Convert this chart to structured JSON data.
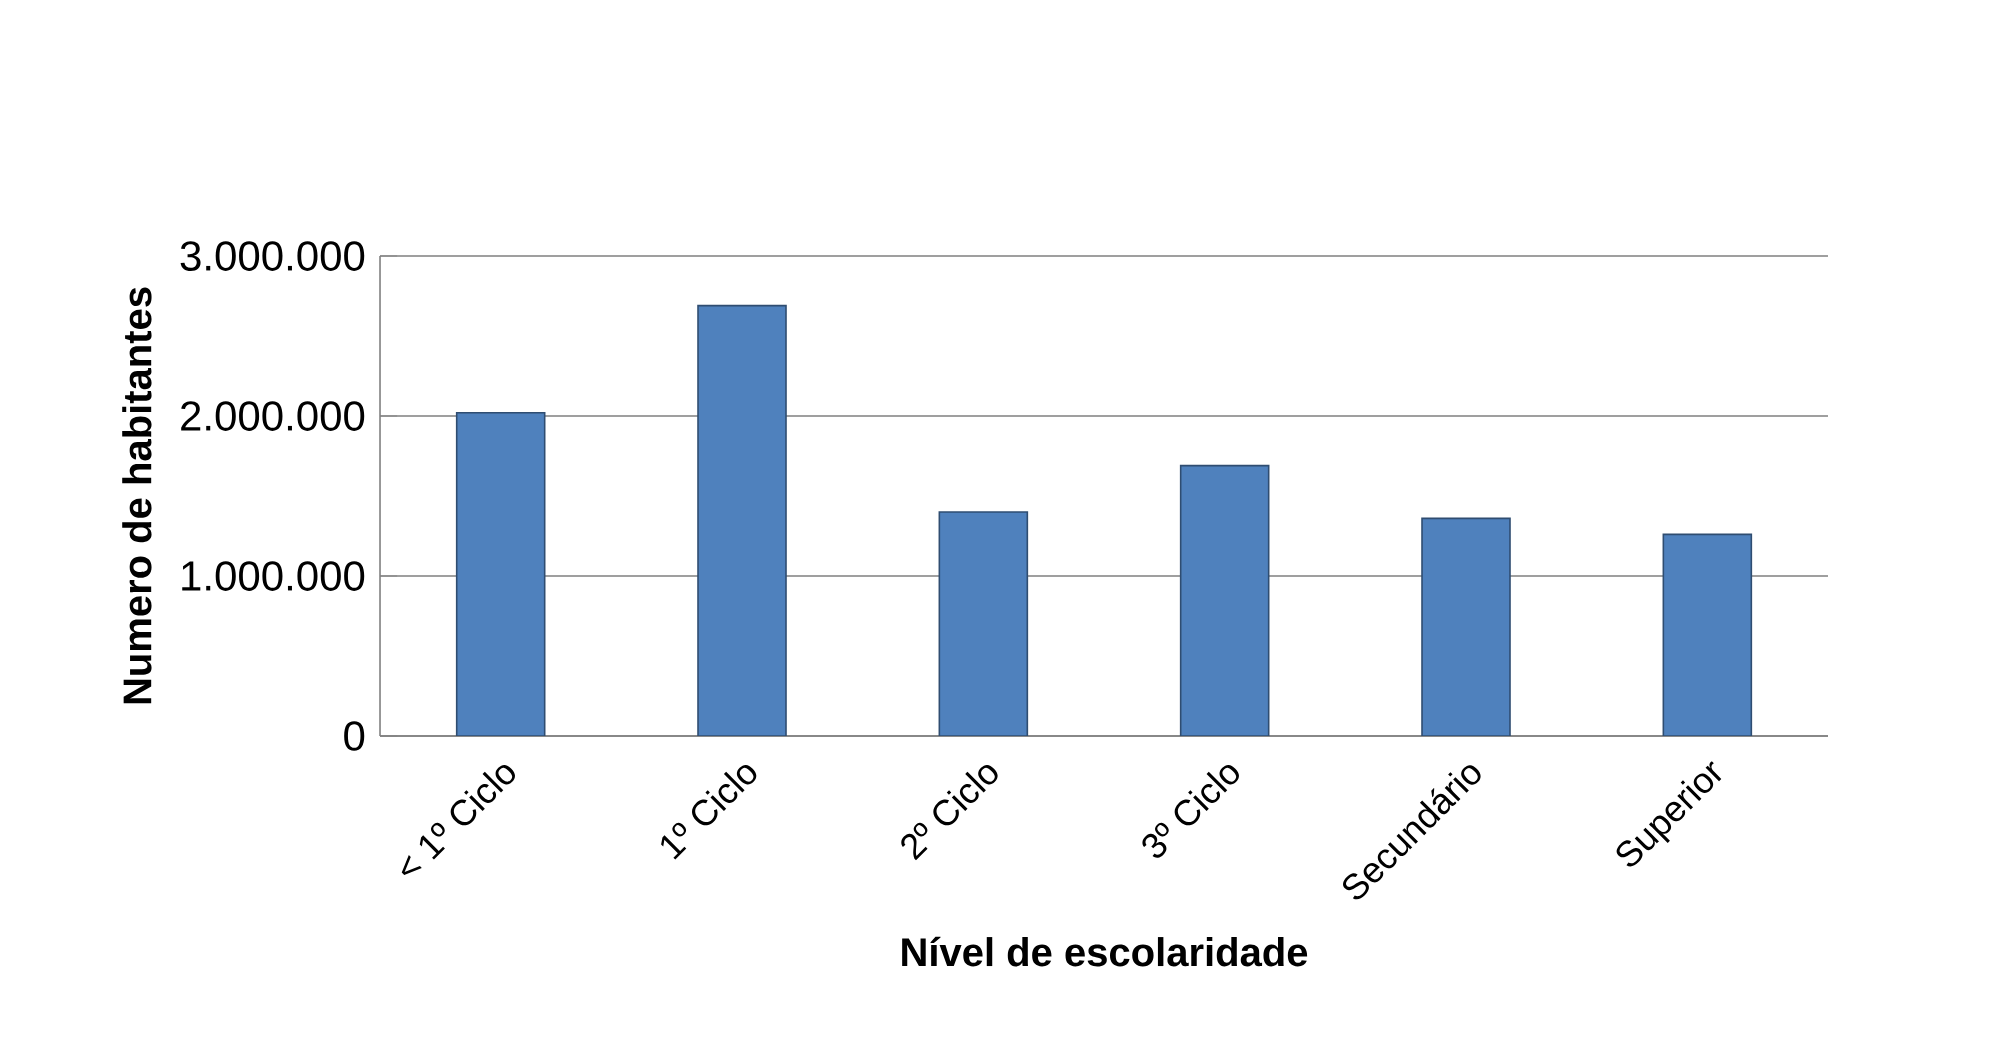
{
  "chart_data": {
    "type": "bar",
    "xlabel": "Nível de escolaridade",
    "ylabel": "Numero de habitantes",
    "categories": [
      "< 1º Ciclo",
      "1º Ciclo",
      "2º Ciclo",
      "3º Ciclo",
      "Secundário",
      "Superior"
    ],
    "values": [
      2020000,
      2690000,
      1400000,
      1690000,
      1360000,
      1260000
    ],
    "color": "#4f81bd",
    "ylim": [
      0,
      3000000
    ],
    "yticks": [
      {
        "value": 0,
        "label": "0"
      },
      {
        "value": 1000000,
        "label": "1.000.000"
      },
      {
        "value": 2000000,
        "label": "2.000.000"
      },
      {
        "value": 3000000,
        "label": "3.000.000"
      }
    ],
    "grid": "y"
  }
}
